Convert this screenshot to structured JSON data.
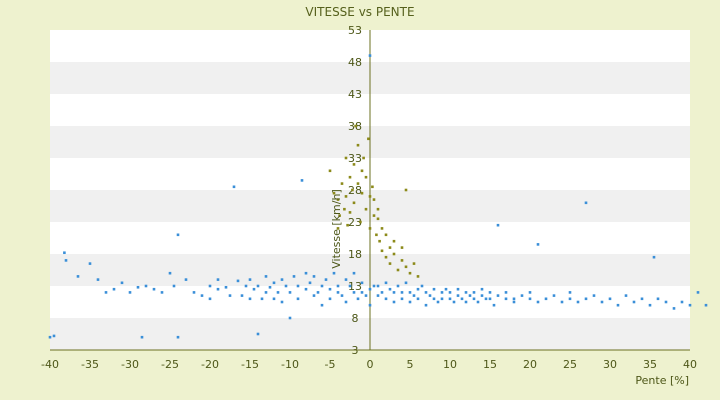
{
  "chart_data": {
    "type": "scatter",
    "title": "VITESSE vs PENTE",
    "xlabel": "Pente [%]",
    "ylabel": "Vitesse [km/h]",
    "xlim": [
      -40,
      40
    ],
    "ylim": [
      3,
      53
    ],
    "x_ticks": [
      "-40",
      "-35",
      "-30",
      "-25",
      "-20",
      "-15",
      "-10",
      "-5",
      "0",
      "5",
      "10",
      "15",
      "20",
      "25",
      "30",
      "35",
      "40"
    ],
    "y_ticks": [
      "3",
      "8",
      "13",
      "18",
      "23",
      "28",
      "33",
      "38",
      "43",
      "48",
      "53"
    ],
    "grid": "horizontal alternating bands",
    "legend": "none",
    "colors": {
      "background": "#eef2cf",
      "plot_band_light": "#ffffff",
      "plot_band_dark": "#f0f0f0",
      "series_blue": "#3a8fd8",
      "series_olive": "#8c8a1a",
      "axis": "#6b7020"
    },
    "series": [
      {
        "color": "#3a8fd8",
        "points": [
          [
            -40,
            5
          ],
          [
            -39.5,
            5.2
          ],
          [
            -38.2,
            18.2
          ],
          [
            -38,
            17
          ],
          [
            -36.5,
            14.5
          ],
          [
            -35,
            16.5
          ],
          [
            -34,
            14
          ],
          [
            -33,
            12
          ],
          [
            -32,
            12.5
          ],
          [
            -31,
            13.5
          ],
          [
            -30,
            12
          ],
          [
            -29,
            12.8
          ],
          [
            -28.5,
            5
          ],
          [
            -28,
            13
          ],
          [
            -27,
            12.5
          ],
          [
            -26,
            12
          ],
          [
            -25,
            15
          ],
          [
            -24.5,
            13
          ],
          [
            -24,
            21
          ],
          [
            -24,
            5
          ],
          [
            -23,
            14
          ],
          [
            -22,
            12
          ],
          [
            -21,
            11.5
          ],
          [
            -20,
            13
          ],
          [
            -20,
            11
          ],
          [
            -19,
            14
          ],
          [
            -19,
            12.5
          ],
          [
            -18,
            12.8
          ],
          [
            -17.5,
            11.5
          ],
          [
            -17,
            28.5
          ],
          [
            -16.5,
            13.8
          ],
          [
            -16,
            11.5
          ],
          [
            -15.5,
            13
          ],
          [
            -15,
            14
          ],
          [
            -15,
            11
          ],
          [
            -14.5,
            12.5
          ],
          [
            -14,
            13
          ],
          [
            -14,
            5.5
          ],
          [
            -13.5,
            11
          ],
          [
            -13,
            14.5
          ],
          [
            -13,
            12
          ],
          [
            -12.5,
            12.8
          ],
          [
            -12,
            13.5
          ],
          [
            -12,
            11
          ],
          [
            -11.5,
            12
          ],
          [
            -11,
            14
          ],
          [
            -11,
            10.5
          ],
          [
            -10.5,
            13
          ],
          [
            -10,
            12
          ],
          [
            -10,
            8
          ],
          [
            -9.5,
            14.5
          ],
          [
            -9,
            13
          ],
          [
            -9,
            11
          ],
          [
            -8.5,
            29.5
          ],
          [
            -8,
            12.5
          ],
          [
            -8,
            15
          ],
          [
            -7.5,
            13.5
          ],
          [
            -7,
            11.5
          ],
          [
            -7,
            14.5
          ],
          [
            -6.5,
            12
          ],
          [
            -6,
            13
          ],
          [
            -6,
            10
          ],
          [
            -5.5,
            14
          ],
          [
            -5,
            12.5
          ],
          [
            -5,
            11
          ],
          [
            -4.5,
            15
          ],
          [
            -4,
            13
          ],
          [
            -4,
            12
          ],
          [
            -3.5,
            11.5
          ],
          [
            -3,
            14
          ],
          [
            -3,
            10.5
          ],
          [
            -2.5,
            13
          ],
          [
            -2,
            12
          ],
          [
            -2,
            15
          ],
          [
            -1.5,
            11
          ],
          [
            -1,
            13.5
          ],
          [
            -1,
            12
          ],
          [
            -0.5,
            11.5
          ],
          [
            0,
            12.5
          ],
          [
            0,
            10
          ],
          [
            0,
            49
          ],
          [
            0.5,
            13
          ],
          [
            1,
            11.5
          ],
          [
            1,
            13
          ],
          [
            1.5,
            12
          ],
          [
            2,
            11
          ],
          [
            2,
            13.5
          ],
          [
            2.5,
            12.5
          ],
          [
            3,
            12
          ],
          [
            3,
            10.5
          ],
          [
            3.5,
            13
          ],
          [
            4,
            12
          ],
          [
            4,
            11
          ],
          [
            4.5,
            13.5
          ],
          [
            5,
            12
          ],
          [
            5,
            10.5
          ],
          [
            5.5,
            11.5
          ],
          [
            6,
            12.5
          ],
          [
            6,
            11
          ],
          [
            6.5,
            13
          ],
          [
            7,
            12
          ],
          [
            7,
            10
          ],
          [
            7.5,
            11.5
          ],
          [
            8,
            12.5
          ],
          [
            8,
            11
          ],
          [
            8.5,
            10.5
          ],
          [
            9,
            12
          ],
          [
            9,
            11
          ],
          [
            9.5,
            12.5
          ],
          [
            10,
            11
          ],
          [
            10,
            12
          ],
          [
            10.5,
            10.5
          ],
          [
            11,
            11.5
          ],
          [
            11,
            12.5
          ],
          [
            11.5,
            11
          ],
          [
            12,
            12
          ],
          [
            12,
            10.5
          ],
          [
            12.5,
            11.5
          ],
          [
            13,
            12
          ],
          [
            13,
            11
          ],
          [
            13.5,
            10.5
          ],
          [
            14,
            11.5
          ],
          [
            14,
            12.5
          ],
          [
            14.5,
            11
          ],
          [
            15,
            12
          ],
          [
            15,
            11
          ],
          [
            15.5,
            10
          ],
          [
            16,
            11.5
          ],
          [
            16,
            22.5
          ],
          [
            17,
            11
          ],
          [
            17,
            12
          ],
          [
            18,
            11
          ],
          [
            18,
            10.5
          ],
          [
            19,
            11.5
          ],
          [
            20,
            11
          ],
          [
            20,
            12
          ],
          [
            21,
            10.5
          ],
          [
            21,
            19.5
          ],
          [
            22,
            11
          ],
          [
            23,
            11.5
          ],
          [
            24,
            10.5
          ],
          [
            25,
            11
          ],
          [
            25,
            12
          ],
          [
            26,
            10.5
          ],
          [
            27,
            11
          ],
          [
            27,
            26
          ],
          [
            28,
            11.5
          ],
          [
            29,
            10.5
          ],
          [
            30,
            11
          ],
          [
            31,
            10
          ],
          [
            32,
            11.5
          ],
          [
            33,
            10.5
          ],
          [
            34,
            11
          ],
          [
            35,
            10
          ],
          [
            35.5,
            17.5
          ],
          [
            36,
            11
          ],
          [
            37,
            10.5
          ],
          [
            38,
            9.5
          ],
          [
            39,
            10.5
          ],
          [
            40,
            10
          ],
          [
            41,
            12
          ],
          [
            42,
            10
          ]
        ]
      },
      {
        "color": "#8c8a1a",
        "points": [
          [
            -5,
            31
          ],
          [
            -4.5,
            27.5
          ],
          [
            -4,
            26.5
          ],
          [
            -4,
            22
          ],
          [
            -3.8,
            24
          ],
          [
            -3.5,
            29
          ],
          [
            -3.2,
            25
          ],
          [
            -3,
            27
          ],
          [
            -3,
            33
          ],
          [
            -2.8,
            22.5
          ],
          [
            -2.5,
            30
          ],
          [
            -2.5,
            24.5
          ],
          [
            -2.2,
            28
          ],
          [
            -2,
            32
          ],
          [
            -2,
            26
          ],
          [
            -1.8,
            38
          ],
          [
            -1.5,
            35
          ],
          [
            -1.5,
            29
          ],
          [
            -1.2,
            23
          ],
          [
            -1,
            31
          ],
          [
            -1,
            27.5
          ],
          [
            -0.8,
            33
          ],
          [
            -0.5,
            25
          ],
          [
            -0.5,
            30
          ],
          [
            -0.2,
            36
          ],
          [
            0,
            27
          ],
          [
            0,
            22
          ],
          [
            0.3,
            28.5
          ],
          [
            0.5,
            24
          ],
          [
            0.5,
            26.5
          ],
          [
            0.8,
            21
          ],
          [
            1,
            23.5
          ],
          [
            1,
            25
          ],
          [
            1.2,
            20
          ],
          [
            1.5,
            22
          ],
          [
            1.5,
            18.5
          ],
          [
            2,
            21
          ],
          [
            2,
            17.5
          ],
          [
            2.5,
            19
          ],
          [
            2.5,
            16.5
          ],
          [
            3,
            18
          ],
          [
            3,
            20
          ],
          [
            3.5,
            15.5
          ],
          [
            4,
            17
          ],
          [
            4,
            19
          ],
          [
            4.5,
            16
          ],
          [
            4.5,
            28
          ],
          [
            5,
            15
          ],
          [
            5.5,
            16.5
          ],
          [
            6,
            14.5
          ]
        ]
      }
    ]
  }
}
